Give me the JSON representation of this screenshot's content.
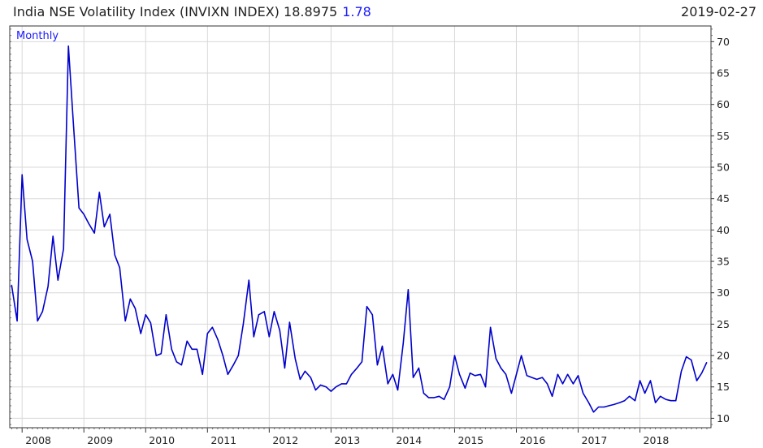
{
  "header": {
    "title": "India NSE Volatility Index (INVIXN INDEX)",
    "last_value": "18.8975",
    "change": "1.78",
    "date": "2019-02-27"
  },
  "colors": {
    "line": "#0000cc",
    "change": "#1a1aff",
    "grid": "#d8d8d8"
  },
  "chart_data": {
    "type": "line",
    "frequency_label": "Monthly",
    "title": "India NSE Volatility Index (INVIXN INDEX)",
    "xlabel": "",
    "ylabel": "",
    "ylim": [
      8.5,
      72.5
    ],
    "yticks": [
      10,
      15,
      20,
      25,
      30,
      35,
      40,
      45,
      50,
      55,
      60,
      65,
      70
    ],
    "xticks": [
      "2008",
      "2009",
      "2010",
      "2011",
      "2012",
      "2013",
      "2014",
      "2015",
      "2016",
      "2017",
      "2018"
    ],
    "xlim": [
      2007.8,
      2019.15
    ],
    "grid": true,
    "y_axis_side": "right",
    "series": [
      {
        "name": "",
        "points": [
          [
            2007.83,
            31.2
          ],
          [
            2007.92,
            25.5
          ],
          [
            2008.0,
            48.8
          ],
          [
            2008.08,
            38.5
          ],
          [
            2008.17,
            35.0
          ],
          [
            2008.25,
            25.5
          ],
          [
            2008.33,
            27.0
          ],
          [
            2008.42,
            31.0
          ],
          [
            2008.5,
            39.0
          ],
          [
            2008.58,
            32.0
          ],
          [
            2008.67,
            37.0
          ],
          [
            2008.75,
            69.3
          ],
          [
            2008.83,
            57.0
          ],
          [
            2008.92,
            43.5
          ],
          [
            2009.0,
            42.5
          ],
          [
            2009.08,
            41.0
          ],
          [
            2009.17,
            39.5
          ],
          [
            2009.25,
            46.0
          ],
          [
            2009.33,
            40.5
          ],
          [
            2009.42,
            42.5
          ],
          [
            2009.5,
            36.0
          ],
          [
            2009.58,
            34.0
          ],
          [
            2009.67,
            25.5
          ],
          [
            2009.75,
            29.0
          ],
          [
            2009.83,
            27.5
          ],
          [
            2009.92,
            23.5
          ],
          [
            2010.0,
            26.5
          ],
          [
            2010.08,
            25.2
          ],
          [
            2010.17,
            20.0
          ],
          [
            2010.25,
            20.3
          ],
          [
            2010.33,
            26.5
          ],
          [
            2010.42,
            21.0
          ],
          [
            2010.5,
            19.0
          ],
          [
            2010.58,
            18.5
          ],
          [
            2010.67,
            22.3
          ],
          [
            2010.75,
            21.0
          ],
          [
            2010.83,
            21.0
          ],
          [
            2010.92,
            17.0
          ],
          [
            2011.0,
            23.5
          ],
          [
            2011.08,
            24.5
          ],
          [
            2011.17,
            22.5
          ],
          [
            2011.25,
            20.0
          ],
          [
            2011.33,
            17.0
          ],
          [
            2011.42,
            18.5
          ],
          [
            2011.5,
            20.0
          ],
          [
            2011.58,
            25.0
          ],
          [
            2011.67,
            32.0
          ],
          [
            2011.75,
            23.0
          ],
          [
            2011.83,
            26.5
          ],
          [
            2011.92,
            27.0
          ],
          [
            2012.0,
            23.0
          ],
          [
            2012.08,
            27.0
          ],
          [
            2012.17,
            24.0
          ],
          [
            2012.25,
            18.0
          ],
          [
            2012.33,
            25.3
          ],
          [
            2012.42,
            19.5
          ],
          [
            2012.5,
            16.2
          ],
          [
            2012.58,
            17.5
          ],
          [
            2012.67,
            16.5
          ],
          [
            2012.75,
            14.5
          ],
          [
            2012.83,
            15.3
          ],
          [
            2012.92,
            15.0
          ],
          [
            2013.0,
            14.3
          ],
          [
            2013.08,
            15.0
          ],
          [
            2013.17,
            15.5
          ],
          [
            2013.25,
            15.5
          ],
          [
            2013.33,
            17.0
          ],
          [
            2013.42,
            18.0
          ],
          [
            2013.5,
            19.0
          ],
          [
            2013.58,
            27.8
          ],
          [
            2013.67,
            26.5
          ],
          [
            2013.75,
            18.5
          ],
          [
            2013.83,
            21.5
          ],
          [
            2013.92,
            15.5
          ],
          [
            2014.0,
            17.0
          ],
          [
            2014.08,
            14.5
          ],
          [
            2014.17,
            22.0
          ],
          [
            2014.25,
            30.5
          ],
          [
            2014.33,
            16.5
          ],
          [
            2014.42,
            18.0
          ],
          [
            2014.5,
            14.0
          ],
          [
            2014.58,
            13.3
          ],
          [
            2014.67,
            13.3
          ],
          [
            2014.75,
            13.5
          ],
          [
            2014.83,
            13.0
          ],
          [
            2014.92,
            15.0
          ],
          [
            2015.0,
            20.0
          ],
          [
            2015.08,
            17.0
          ],
          [
            2015.17,
            14.8
          ],
          [
            2015.25,
            17.2
          ],
          [
            2015.33,
            16.8
          ],
          [
            2015.42,
            17.0
          ],
          [
            2015.5,
            15.0
          ],
          [
            2015.58,
            24.5
          ],
          [
            2015.67,
            19.5
          ],
          [
            2015.75,
            18.0
          ],
          [
            2015.83,
            17.0
          ],
          [
            2015.92,
            14.0
          ],
          [
            2016.0,
            17.0
          ],
          [
            2016.08,
            20.0
          ],
          [
            2016.17,
            16.8
          ],
          [
            2016.25,
            16.5
          ],
          [
            2016.33,
            16.2
          ],
          [
            2016.42,
            16.5
          ],
          [
            2016.5,
            15.5
          ],
          [
            2016.58,
            13.5
          ],
          [
            2016.67,
            17.0
          ],
          [
            2016.75,
            15.5
          ],
          [
            2016.83,
            17.0
          ],
          [
            2016.92,
            15.5
          ],
          [
            2017.0,
            16.8
          ],
          [
            2017.08,
            14.0
          ],
          [
            2017.17,
            12.5
          ],
          [
            2017.25,
            11.0
          ],
          [
            2017.33,
            11.8
          ],
          [
            2017.42,
            11.8
          ],
          [
            2017.5,
            12.0
          ],
          [
            2017.58,
            12.2
          ],
          [
            2017.67,
            12.5
          ],
          [
            2017.75,
            12.8
          ],
          [
            2017.83,
            13.5
          ],
          [
            2017.92,
            12.8
          ],
          [
            2018.0,
            16.0
          ],
          [
            2018.08,
            14.0
          ],
          [
            2018.17,
            16.0
          ],
          [
            2018.25,
            12.5
          ],
          [
            2018.33,
            13.5
          ],
          [
            2018.42,
            13.0
          ],
          [
            2018.5,
            12.8
          ],
          [
            2018.58,
            12.8
          ],
          [
            2018.67,
            17.5
          ],
          [
            2018.75,
            19.8
          ],
          [
            2018.83,
            19.3
          ],
          [
            2018.92,
            16.0
          ],
          [
            2019.0,
            17.2
          ],
          [
            2019.08,
            18.9
          ]
        ]
      }
    ]
  }
}
